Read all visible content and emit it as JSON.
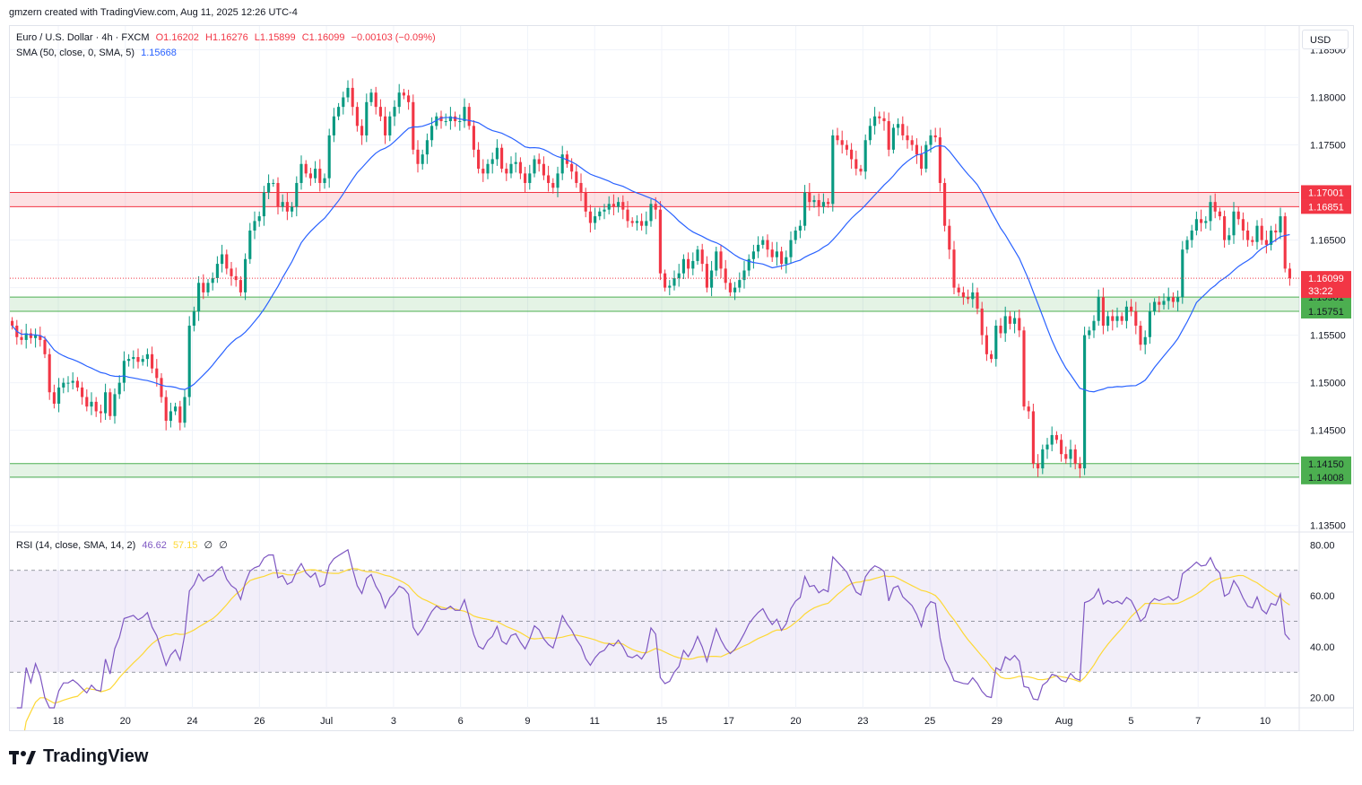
{
  "header": {
    "text": "gmzern created with TradingView.com, Aug 11, 2025 12:26 UTC-4"
  },
  "legend": {
    "symbol": "Euro / U.S. Dollar · 4h · FXCM",
    "open": "O1.16202",
    "high": "H1.16276",
    "low": "L1.15899",
    "close": "C1.16099",
    "change": "−0.00103 (−0.09%)",
    "sma_label": "SMA (50, close, 0, SMA, 5)",
    "sma_value": "1.15668",
    "rsi_label": "RSI (14, close, SMA, 14, 2)",
    "rsi_value": "46.62",
    "rsi_sma_value": "57.15",
    "rsi_extra1": "∅",
    "rsi_extra2": "∅"
  },
  "currency": "USD",
  "logo_text": "TradingView",
  "colors": {
    "up": "#089981",
    "down": "#f23645",
    "sma": "#2962ff",
    "rsi": "#7e57c2",
    "rsi_sma": "#fdd835",
    "resistance": "#f23645",
    "support": "#4caf50"
  },
  "chart_data": {
    "type": "candlestick",
    "price_axis": {
      "ticks": [
        "1.18500",
        "1.18000",
        "1.17500",
        "1.17000",
        "1.16500",
        "1.16000",
        "1.15500",
        "1.15000",
        "1.14500",
        "1.14000",
        "1.13500"
      ],
      "range": [
        1.1345,
        1.1875
      ]
    },
    "rsi_axis": {
      "ticks": [
        "80.00",
        "60.00",
        "40.00",
        "20.00"
      ],
      "range": [
        16,
        84
      ],
      "bands": [
        70,
        50,
        30
      ]
    },
    "time_axis": {
      "ticks": [
        "18",
        "20",
        "24",
        "26",
        "Jul",
        "3",
        "6",
        "9",
        "11",
        "15",
        "17",
        "20",
        "23",
        "25",
        "29",
        "Aug",
        "5",
        "7",
        "10"
      ]
    },
    "zones": [
      {
        "name": "resistance",
        "top": 1.17001,
        "bottom": 1.16851,
        "labels": [
          "1.17001",
          "1.16851"
        ]
      },
      {
        "name": "support-1",
        "top": 1.15901,
        "bottom": 1.15751,
        "labels": [
          "1.15901",
          "1.15751"
        ]
      },
      {
        "name": "support-2",
        "top": 1.1415,
        "bottom": 1.14008,
        "labels": [
          "1.14150",
          "1.14008"
        ]
      }
    ],
    "last_price": {
      "value": 1.16099,
      "label": "1.16099",
      "countdown": "33:22"
    },
    "closes": [
      1.156,
      1.1548,
      1.1545,
      1.1552,
      1.1547,
      1.155,
      1.1545,
      1.153,
      1.149,
      1.1478,
      1.1495,
      1.15,
      1.15,
      1.1502,
      1.1495,
      1.1485,
      1.1475,
      1.148,
      1.147,
      1.1468,
      1.149,
      1.1465,
      1.1488,
      1.15,
      1.1523,
      1.1525,
      1.1527,
      1.1522,
      1.1525,
      1.153,
      1.1515,
      1.1505,
      1.1485,
      1.146,
      1.147,
      1.1475,
      1.1458,
      1.1485,
      1.156,
      1.1575,
      1.1605,
      1.1595,
      1.1605,
      1.161,
      1.1625,
      1.1635,
      1.162,
      1.1612,
      1.1608,
      1.1595,
      1.163,
      1.166,
      1.167,
      1.1675,
      1.17,
      1.171,
      1.171,
      1.1685,
      1.169,
      1.168,
      1.1685,
      1.171,
      1.173,
      1.172,
      1.1715,
      1.1725,
      1.171,
      1.1715,
      1.176,
      1.178,
      1.179,
      1.18,
      1.181,
      1.179,
      1.177,
      1.176,
      1.1795,
      1.1805,
      1.179,
      1.178,
      1.176,
      1.178,
      1.179,
      1.1805,
      1.1802,
      1.1795,
      1.1745,
      1.173,
      1.174,
      1.1755,
      1.177,
      1.178,
      1.1775,
      1.1775,
      1.178,
      1.1775,
      1.1775,
      1.179,
      1.177,
      1.1745,
      1.1725,
      1.172,
      1.173,
      1.1735,
      1.1747,
      1.1725,
      1.172,
      1.173,
      1.1732,
      1.172,
      1.171,
      1.172,
      1.1735,
      1.173,
      1.1718,
      1.171,
      1.1705,
      1.172,
      1.174,
      1.173,
      1.1722,
      1.171,
      1.17,
      1.168,
      1.1668,
      1.1675,
      1.168,
      1.1682,
      1.1688,
      1.1685,
      1.169,
      1.1682,
      1.167,
      1.1668,
      1.167,
      1.1665,
      1.167,
      1.1688,
      1.1682,
      1.1615,
      1.16,
      1.1602,
      1.161,
      1.1615,
      1.163,
      1.162,
      1.1628,
      1.164,
      1.1625,
      1.16,
      1.1618,
      1.1638,
      1.162,
      1.1605,
      1.1595,
      1.16,
      1.1608,
      1.1618,
      1.163,
      1.1638,
      1.1645,
      1.165,
      1.164,
      1.1632,
      1.1638,
      1.1625,
      1.1632,
      1.165,
      1.166,
      1.1665,
      1.17,
      1.169,
      1.1692,
      1.1685,
      1.169,
      1.1688,
      1.176,
      1.1755,
      1.175,
      1.1745,
      1.1735,
      1.1725,
      1.1722,
      1.1755,
      1.177,
      1.178,
      1.1778,
      1.1775,
      1.1745,
      1.1768,
      1.1772,
      1.176,
      1.1755,
      1.175,
      1.174,
      1.1725,
      1.175,
      1.176,
      1.1758,
      1.171,
      1.1665,
      1.164,
      1.16,
      1.1595,
      1.159,
      1.1588,
      1.1595,
      1.1578,
      1.155,
      1.153,
      1.1525,
      1.156,
      1.1552,
      1.157,
      1.1562,
      1.1568,
      1.1555,
      1.1475,
      1.147,
      1.1415,
      1.141,
      1.143,
      1.1435,
      1.1445,
      1.144,
      1.1425,
      1.142,
      1.143,
      1.1415,
      1.141,
      1.155,
      1.1555,
      1.1565,
      1.159,
      1.156,
      1.157,
      1.1565,
      1.157,
      1.1565,
      1.158,
      1.1575,
      1.156,
      1.154,
      1.1548,
      1.1575,
      1.1585,
      1.1582,
      1.1586,
      1.159,
      1.1585,
      1.159,
      1.164,
      1.165,
      1.166,
      1.1672,
      1.1668,
      1.167,
      1.169,
      1.168,
      1.1675,
      1.165,
      1.1655,
      1.168,
      1.1672,
      1.166,
      1.165,
      1.1648,
      1.1665,
      1.165,
      1.1645,
      1.166,
      1.1658,
      1.1675,
      1.162,
      1.161
    ]
  }
}
